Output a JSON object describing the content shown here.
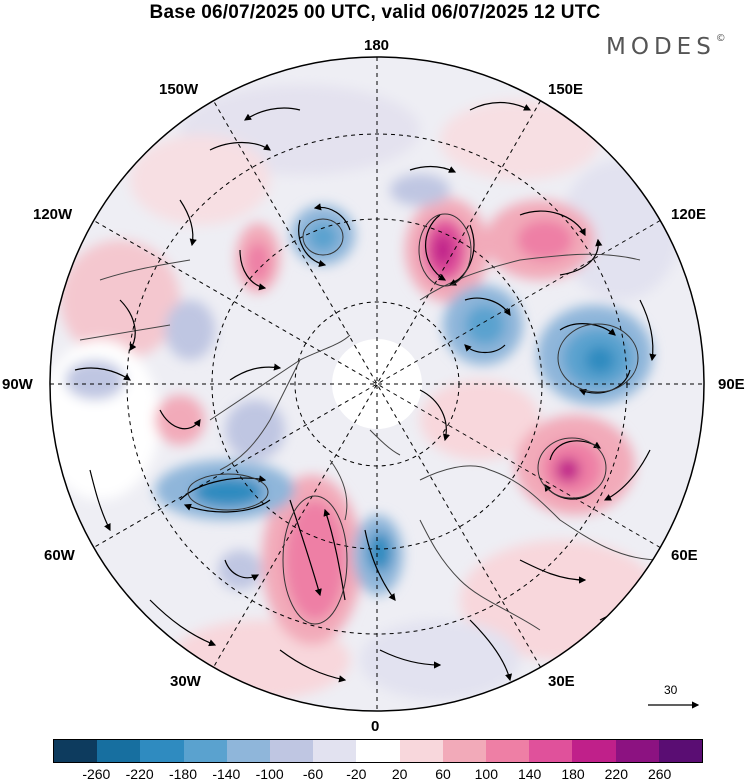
{
  "title": "Base 06/07/2025 00 UTC, valid 06/07/2025 12 UTC",
  "brand": {
    "name": "MODES",
    "mark": "©"
  },
  "longitude_labels": {
    "n180": "180",
    "e150": "150E",
    "e120": "120E",
    "e90": "90E",
    "e60": "60E",
    "e30": "30E",
    "zero": "0",
    "w30": "30W",
    "w60": "60W",
    "w90": "90W",
    "w120": "120W",
    "w150": "150W"
  },
  "reference_vector": {
    "label": "30",
    "icon": "arrow-right-icon"
  },
  "colorbar": {
    "ticks": [
      "-260",
      "-220",
      "-180",
      "-140",
      "-100",
      "-60",
      "-20",
      "20",
      "60",
      "100",
      "140",
      "180",
      "220",
      "260"
    ],
    "colors": [
      "#0d3b5e",
      "#176fa0",
      "#2f8bc0",
      "#5aa2cf",
      "#8fb6da",
      "#bfc6e2",
      "#e2e2f0",
      "#ffffff",
      "#f8d7dc",
      "#f2aab9",
      "#ee7fa5",
      "#e0519b",
      "#c0208a",
      "#8c1281",
      "#5a0d73"
    ]
  },
  "chart_data": {
    "type": "heatmap",
    "projection": "north-polar-stereographic",
    "title": "Base 06/07/2025 00 UTC, valid 06/07/2025 12 UTC",
    "color_levels": [
      -260,
      -220,
      -180,
      -140,
      -100,
      -60,
      -20,
      20,
      60,
      100,
      140,
      180,
      220,
      260
    ],
    "features": [
      {
        "lon": 170,
        "lat": 60,
        "value": -80
      },
      {
        "lon": 150,
        "lat": 62,
        "value": 200
      },
      {
        "lon": 125,
        "lat": 58,
        "value": 150
      },
      {
        "lon": 115,
        "lat": 72,
        "value": -120
      },
      {
        "lon": 95,
        "lat": 55,
        "value": -200
      },
      {
        "lon": 60,
        "lat": 55,
        "value": 200
      },
      {
        "lon": 15,
        "lat": 72,
        "value": -180
      },
      {
        "lon": -20,
        "lat": 55,
        "value": 200
      },
      {
        "lon": -50,
        "lat": 48,
        "value": -80
      },
      {
        "lon": -60,
        "lat": 62,
        "value": -200
      },
      {
        "lon": -95,
        "lat": 58,
        "value": 120
      },
      {
        "lon": -120,
        "lat": 60,
        "value": 60
      },
      {
        "lon": -150,
        "lat": 70,
        "value": 180
      },
      {
        "lon": -165,
        "lat": 72,
        "value": -150
      }
    ]
  }
}
